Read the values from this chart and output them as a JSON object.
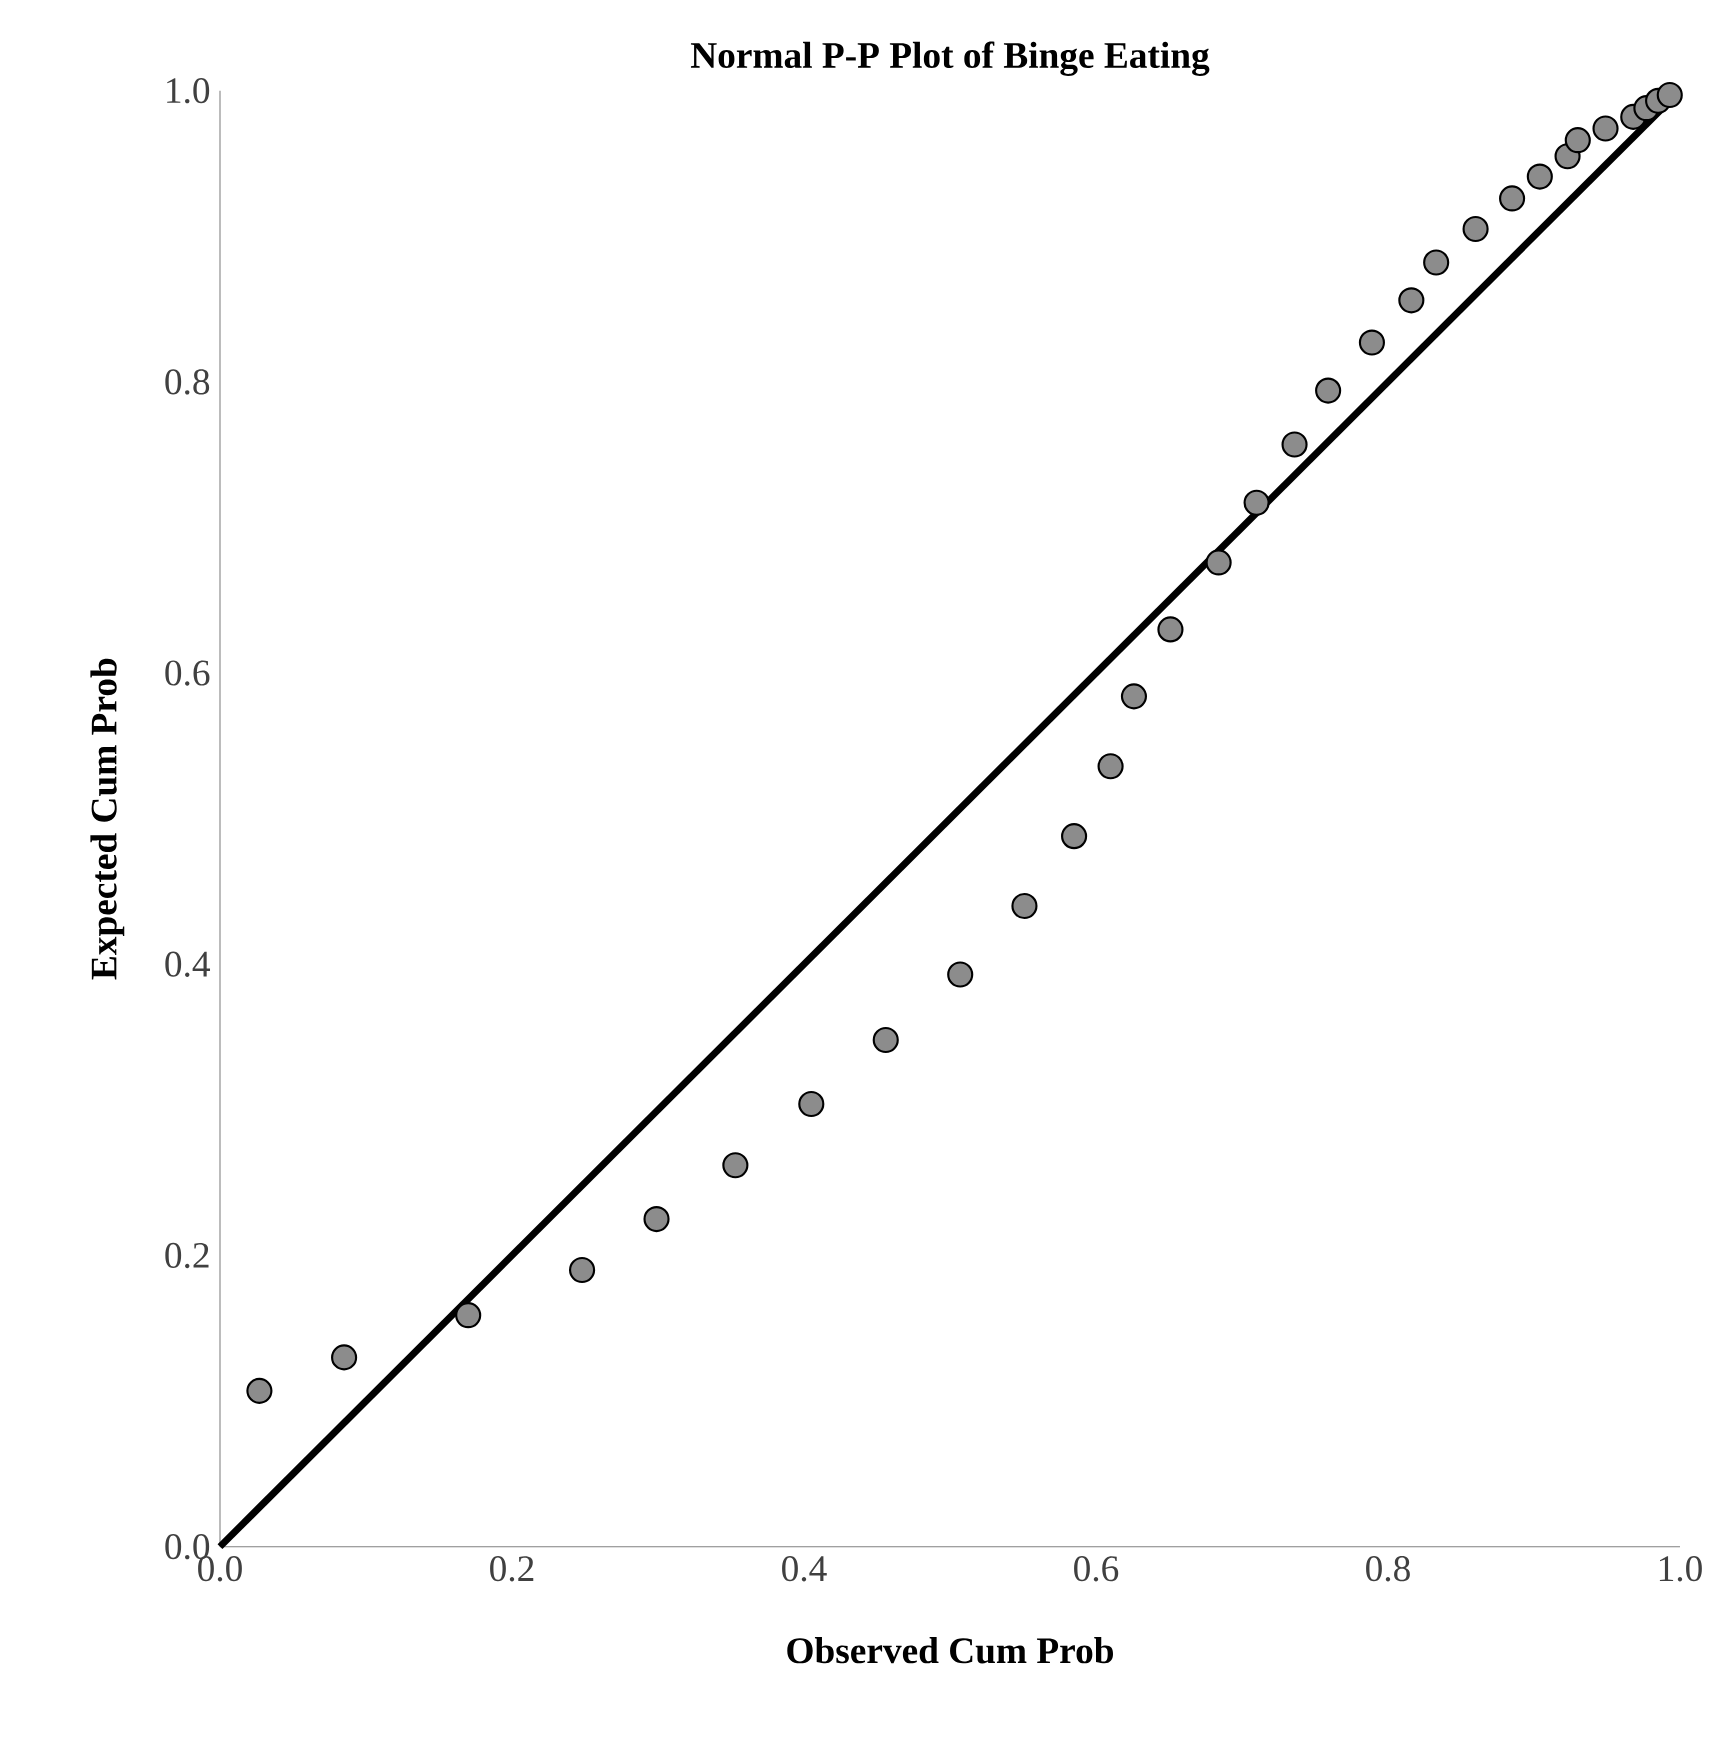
{
  "chart_data": {
    "type": "scatter",
    "title": "Normal P-P Plot of Binge Eating",
    "xlabel": "Observed Cum Prob",
    "ylabel": "Expected Cum Prob",
    "xlim": [
      0,
      1
    ],
    "ylim": [
      0,
      1
    ],
    "xticks": [
      {
        "value": 0,
        "label": "0.0"
      },
      {
        "value": 0.2,
        "label": "0.2"
      },
      {
        "value": 0.4,
        "label": "0.4"
      },
      {
        "value": 0.6,
        "label": "0.6"
      },
      {
        "value": 0.8,
        "label": "0.8"
      },
      {
        "value": 1,
        "label": "1.0"
      }
    ],
    "yticks": [
      {
        "value": 0,
        "label": "0.0"
      },
      {
        "value": 0.2,
        "label": "0.2"
      },
      {
        "value": 0.4,
        "label": "0.4"
      },
      {
        "value": 0.6,
        "label": "0.6"
      },
      {
        "value": 0.8,
        "label": "0.8"
      },
      {
        "value": 1,
        "label": "1.0"
      }
    ],
    "series": [
      {
        "marker": "circle",
        "color": "#8c8c8c",
        "x": [
          0.027,
          0.085,
          0.17,
          0.248,
          0.299,
          0.353,
          0.405,
          0.456,
          0.507,
          0.551,
          0.585,
          0.61,
          0.626,
          0.651,
          0.684,
          0.71,
          0.736,
          0.759,
          0.789,
          0.816,
          0.833,
          0.86,
          0.885,
          0.904,
          0.923,
          0.93,
          0.949,
          0.968,
          0.977,
          0.985,
          0.993
        ],
        "values": [
          0.107,
          0.13,
          0.159,
          0.19,
          0.225,
          0.262,
          0.304,
          0.348,
          0.393,
          0.44,
          0.488,
          0.536,
          0.584,
          0.63,
          0.676,
          0.717,
          0.757,
          0.794,
          0.827,
          0.856,
          0.882,
          0.905,
          0.926,
          0.941,
          0.955,
          0.966,
          0.974,
          0.982,
          0.988,
          0.993,
          0.997
        ]
      },
      {
        "type": "line",
        "marker": "none",
        "color": "#000000",
        "x": [
          0,
          1
        ],
        "values": [
          0,
          1
        ]
      }
    ]
  }
}
